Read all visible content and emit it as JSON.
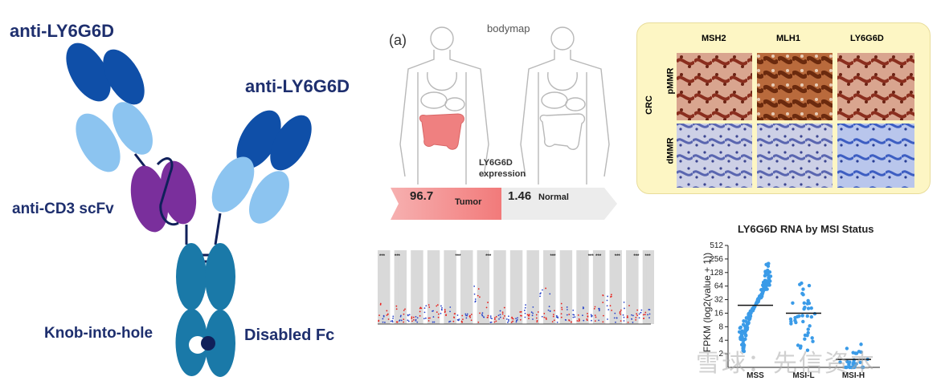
{
  "antibody": {
    "label_top_left": "anti-LY6G6D",
    "label_top_right": "anti-LY6G6D",
    "label_scfv": "anti-CD3 scFv",
    "label_knob": "Knob-into-hole",
    "label_fc": "Disabled Fc",
    "colors": {
      "dark_blue": "#0f4fa8",
      "light_blue": "#8cc4f0",
      "purple": "#7a2f9c",
      "teal": "#1a79a8",
      "navy": "#10205a"
    }
  },
  "bodymap": {
    "panel_label": "(a)",
    "title": "bodymap",
    "caption_line1": "LY6G6D",
    "caption_line2": "expression",
    "tumor_value": "96.7",
    "tumor_label": "Tumor",
    "normal_value": "1.46",
    "normal_label": "Normal",
    "tumor_color": "#f2898a"
  },
  "ihc": {
    "columns": [
      "MSH2",
      "MLH1",
      "LY6G6D"
    ],
    "group_label": "CRC",
    "rows": [
      "pMMR",
      "dMMR"
    ],
    "background": "#fdf6c4"
  },
  "expression_strip": {
    "significance_markers": [
      "***",
      "***",
      "***",
      "***",
      "***",
      "***",
      "***",
      "***",
      "***",
      "***"
    ]
  },
  "msi_chart": {
    "chart_data": {
      "type": "scatter",
      "title": "LY6G6D RNA by MSI Status",
      "ylabel": "FPKM (log2(value + 1))",
      "yticks": [
        "512",
        "256",
        "128",
        "64",
        "32",
        "16",
        "8",
        "4",
        "2"
      ],
      "categories": [
        "MSS",
        "MSI-L",
        "MSI-H"
      ],
      "medians": [
        24,
        16,
        1.5
      ],
      "y_scale": "log2",
      "ylim": [
        1,
        512
      ]
    }
  },
  "watermark": "雪球：先信资本"
}
